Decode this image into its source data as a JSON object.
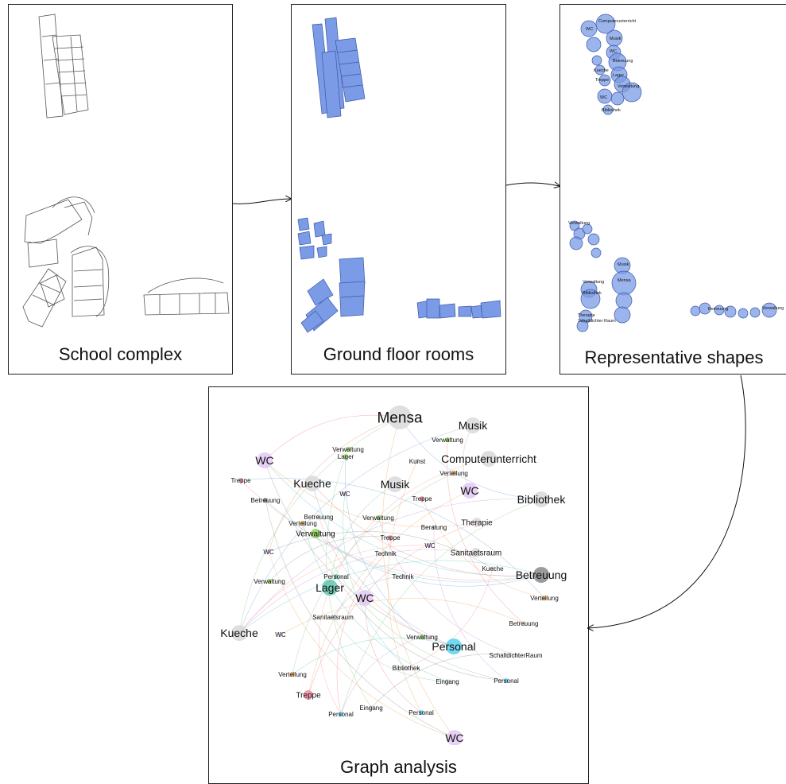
{
  "panels": {
    "school_complex": "School complex",
    "ground_floor": "Ground floor rooms",
    "representative": "Representative shapes",
    "graph": "Graph analysis"
  },
  "colors": {
    "room_fill": "#7b9be6",
    "room_stroke": "#3a58a8",
    "circle_fill": "#7b9be6",
    "gray_node": "#d9d9d9",
    "dark_node": "#8a8a8a",
    "purple_node": "#e3c8f5",
    "teal_node": "#5fc7b0",
    "cyan_node": "#5ad0f0",
    "green_node": "#8fd35a",
    "orange_node": "#f0a050",
    "pink_node": "#f28aa0"
  },
  "rep_labels": [
    "Computerunterricht",
    "WC",
    "Musik",
    "WC",
    "Betreuung",
    "Kueche",
    "Lager",
    "Treppe",
    "Verwaltung",
    "WC",
    "Bibliothek",
    "Verwaltung",
    "Musik",
    "Mensa",
    "Verwaltung",
    "Bibliothek",
    "Therapie",
    "Schalldichter Raum",
    "Betreuung",
    "Verwaltung"
  ],
  "graph_nodes": [
    {
      "label": "Mensa",
      "size": "xl",
      "color": "gray"
    },
    {
      "label": "Musik",
      "size": "l",
      "color": "gray"
    },
    {
      "label": "Verwaltung",
      "size": "s",
      "color": "green"
    },
    {
      "label": "WC",
      "size": "l",
      "color": "purple"
    },
    {
      "label": "Verwaltung",
      "size": "s",
      "color": "green"
    },
    {
      "label": "Lager",
      "size": "s",
      "color": "green"
    },
    {
      "label": "Kunst",
      "size": "s",
      "color": "gray"
    },
    {
      "label": "Computerunterricht",
      "size": "l",
      "color": "gray"
    },
    {
      "label": "Treppe",
      "size": "s",
      "color": "pink"
    },
    {
      "label": "Kueche",
      "size": "l",
      "color": "gray"
    },
    {
      "label": "Musik",
      "size": "l",
      "color": "gray"
    },
    {
      "label": "Verteilung",
      "size": "s",
      "color": "orange"
    },
    {
      "label": "WC",
      "size": "l",
      "color": "purple"
    },
    {
      "label": "Bibliothek",
      "size": "l",
      "color": "gray"
    },
    {
      "label": "Betreuung",
      "size": "s",
      "color": "dark"
    },
    {
      "label": "WC",
      "size": "s",
      "color": "purple"
    },
    {
      "label": "Treppe",
      "size": "s",
      "color": "pink"
    },
    {
      "label": "Betreuung",
      "size": "s",
      "color": "gray"
    },
    {
      "label": "Verwaltung",
      "size": "s",
      "color": "green"
    },
    {
      "label": "Beratung",
      "size": "s",
      "color": "gray"
    },
    {
      "label": "Therapie",
      "size": "m",
      "color": "gray"
    },
    {
      "label": "Verteilung",
      "size": "s",
      "color": "orange"
    },
    {
      "label": "Verwaltung",
      "size": "m",
      "color": "green"
    },
    {
      "label": "Treppe",
      "size": "s",
      "color": "pink"
    },
    {
      "label": "WC",
      "size": "s",
      "color": "purple"
    },
    {
      "label": "WC",
      "size": "s",
      "color": "purple"
    },
    {
      "label": "Technik",
      "size": "s",
      "color": "gray"
    },
    {
      "label": "Sanitaetsraum",
      "size": "m",
      "color": "gray"
    },
    {
      "label": "Kueche",
      "size": "s",
      "color": "gray"
    },
    {
      "label": "Betreuung",
      "size": "l",
      "color": "dark"
    },
    {
      "label": "Personal",
      "size": "s",
      "color": "teal"
    },
    {
      "label": "Technik",
      "size": "s",
      "color": "gray"
    },
    {
      "label": "Verwaltung",
      "size": "s",
      "color": "green"
    },
    {
      "label": "Lager",
      "size": "l",
      "color": "teal"
    },
    {
      "label": "WC",
      "size": "l",
      "color": "purple"
    },
    {
      "label": "Verteilung",
      "size": "s",
      "color": "orange"
    },
    {
      "label": "Sanitaetsraum",
      "size": "s",
      "color": "gray"
    },
    {
      "label": "Betreuung",
      "size": "s",
      "color": "gray"
    },
    {
      "label": "Kueche",
      "size": "l",
      "color": "gray"
    },
    {
      "label": "WC",
      "size": "s",
      "color": "purple"
    },
    {
      "label": "Verwaltung",
      "size": "s",
      "color": "green"
    },
    {
      "label": "Personal",
      "size": "l",
      "color": "cyan"
    },
    {
      "label": "SchalldichterRaum",
      "size": "s",
      "color": "gray"
    },
    {
      "label": "Bibliothek",
      "size": "s",
      "color": "gray"
    },
    {
      "label": "Verteilung",
      "size": "s",
      "color": "orange"
    },
    {
      "label": "Eingang",
      "size": "s",
      "color": "gray"
    },
    {
      "label": "Personal",
      "size": "s",
      "color": "cyan"
    },
    {
      "label": "Treppe",
      "size": "m",
      "color": "pink"
    },
    {
      "label": "Eingang",
      "size": "s",
      "color": "gray"
    },
    {
      "label": "Personal",
      "size": "s",
      "color": "cyan"
    },
    {
      "label": "Personal",
      "size": "s",
      "color": "cyan"
    },
    {
      "label": "WC",
      "size": "l",
      "color": "purple"
    }
  ]
}
